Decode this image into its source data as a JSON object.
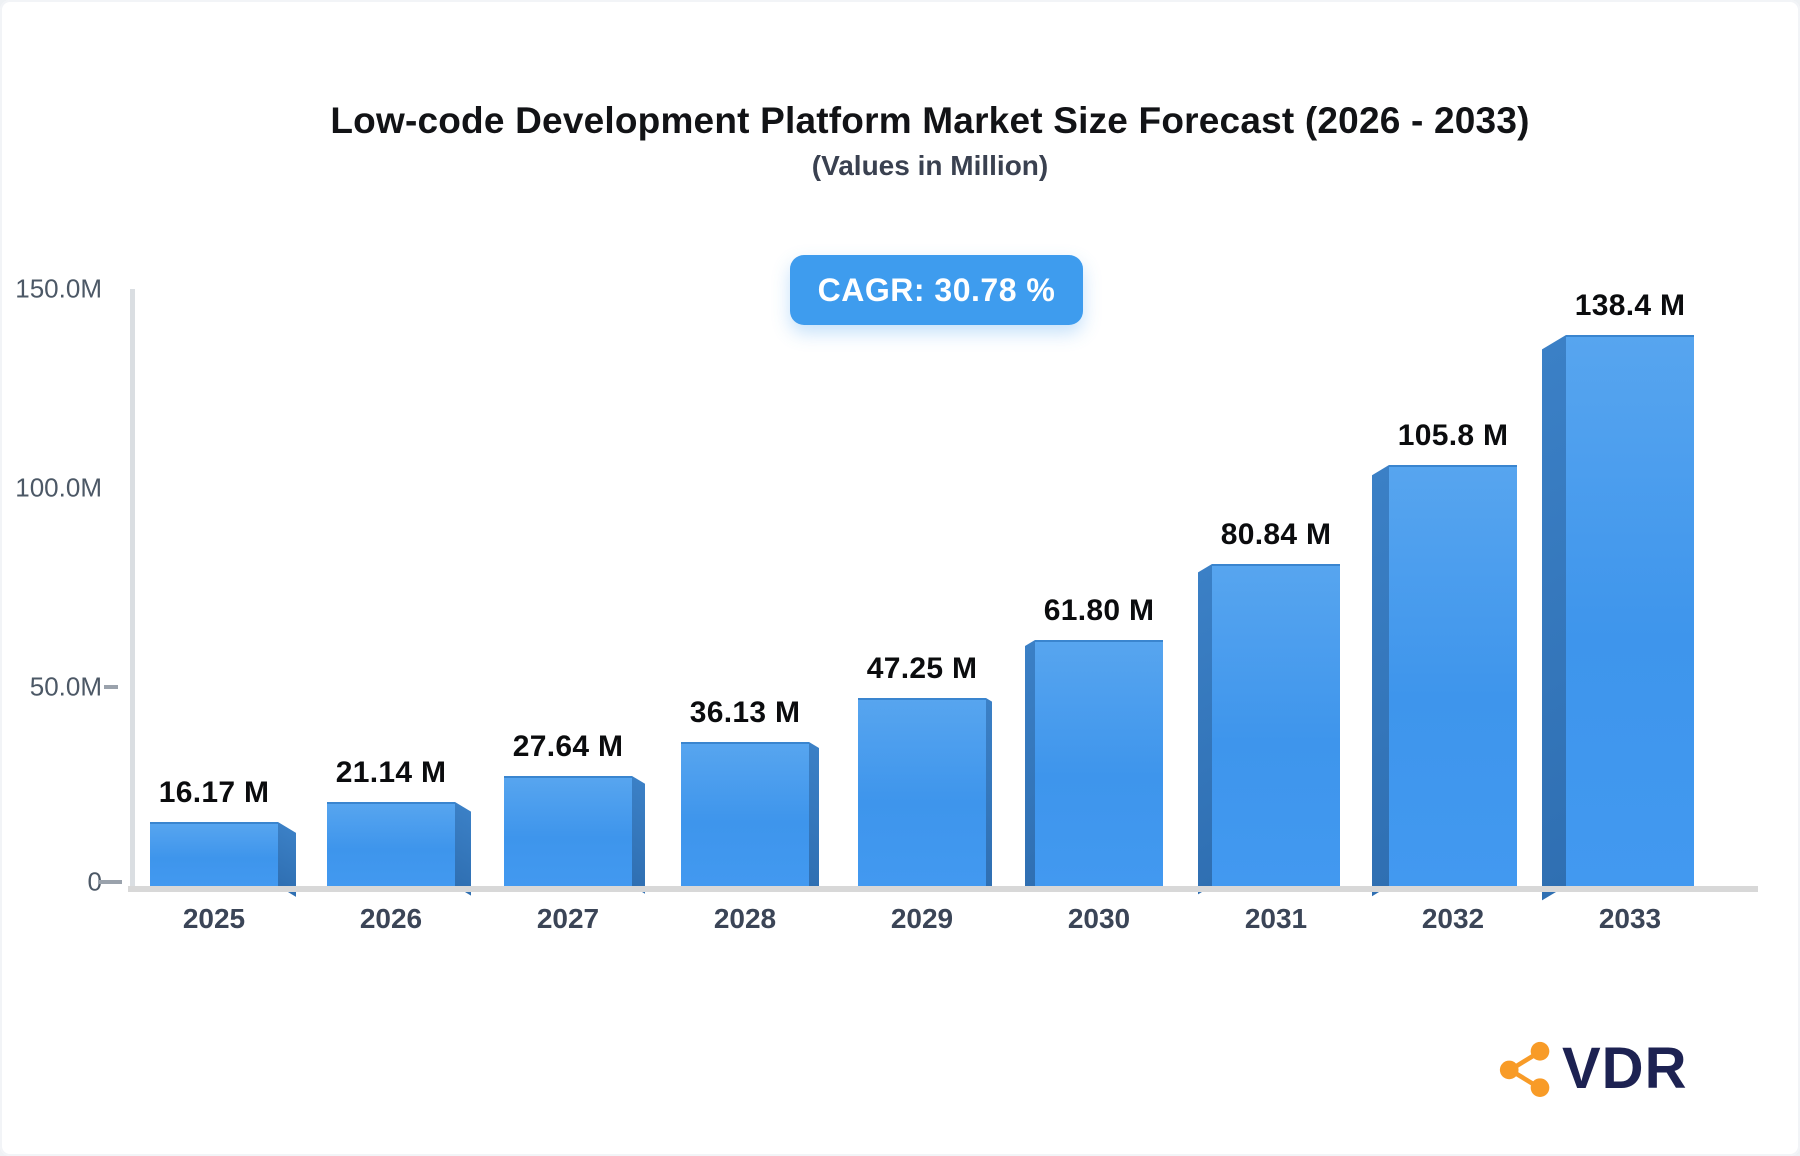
{
  "header": {
    "title": "Low-code Development Platform Market Size Forecast (2026 - 2033)",
    "subtitle": "(Values in Million)",
    "cagr_badge": "CAGR: 30.78 %"
  },
  "chart_data": {
    "type": "bar",
    "title": "Low-code Development Platform Market Size Forecast (2026 - 2033)",
    "subtitle": "(Values in Million)",
    "unit": "Million",
    "categories": [
      "2025",
      "2026",
      "2027",
      "2028",
      "2029",
      "2030",
      "2031",
      "2032",
      "2033"
    ],
    "values": [
      16.17,
      21.14,
      27.64,
      36.13,
      47.25,
      61.8,
      80.84,
      105.8,
      138.4
    ],
    "value_labels": [
      "16.17 M",
      "21.14 M",
      "27.64 M",
      "36.13 M",
      "47.25 M",
      "61.80 M",
      "80.84 M",
      "105.8 M",
      "138.4 M"
    ],
    "cagr_percent": 30.78,
    "ylim": [
      0,
      150
    ],
    "y_ticks": [
      {
        "label": "150.0M",
        "value": 150
      },
      {
        "label": "100.0M",
        "value": 100
      },
      {
        "label": "50.0M",
        "value": 50
      },
      {
        "label": "0",
        "value": 0
      }
    ],
    "grid": "off",
    "legend": "none",
    "style": "3d-perspective-bars"
  },
  "colors": {
    "bar_front_top": "#57a5ef",
    "bar_front_bottom": "#4299f0",
    "bar_side": "#3579bd",
    "badge_background": "#3e9cee",
    "badge_text": "#ffffff",
    "axis_gray": "#d8d8d8",
    "logo_orange": "#f89b27",
    "logo_navy": "#1d2252"
  },
  "footer": {
    "brand": "VDR"
  }
}
